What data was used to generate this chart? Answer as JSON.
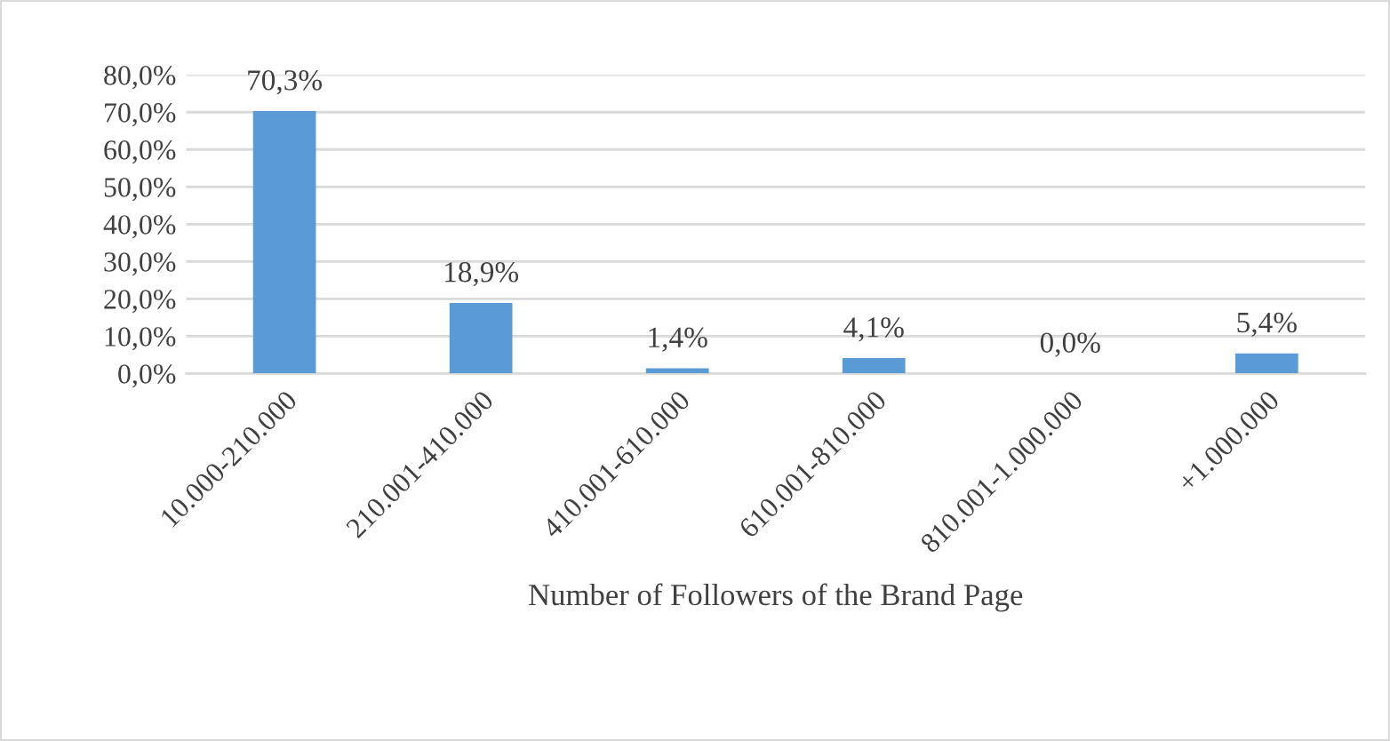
{
  "chart_data": {
    "type": "bar",
    "xlabel": "Number of Followers of the Brand Page",
    "categories": [
      "10.000-210.000",
      "210.001-410.000",
      "410.001-610.000",
      "610.001-810.000",
      "810.001-1.000.000",
      "+1.000.000"
    ],
    "values": [
      70.3,
      18.9,
      1.4,
      4.1,
      0.0,
      5.4
    ],
    "value_labels": [
      "70,3%",
      "18,9%",
      "1,4%",
      "4,1%",
      "0,0%",
      "5,4%"
    ],
    "color": "#5b9bd5",
    "ylim": [
      0,
      80
    ],
    "yticks": [
      {
        "value": 0,
        "label": "0,0%"
      },
      {
        "value": 10,
        "label": "10,0%"
      },
      {
        "value": 20,
        "label": "20,0%"
      },
      {
        "value": 30,
        "label": "30,0%"
      },
      {
        "value": 40,
        "label": "40,0%"
      },
      {
        "value": 50,
        "label": "50,0%"
      },
      {
        "value": 60,
        "label": "60,0%"
      },
      {
        "value": 70,
        "label": "70,0%"
      },
      {
        "value": 80,
        "label": "80,0%"
      }
    ],
    "grid": "y",
    "legend": false
  }
}
